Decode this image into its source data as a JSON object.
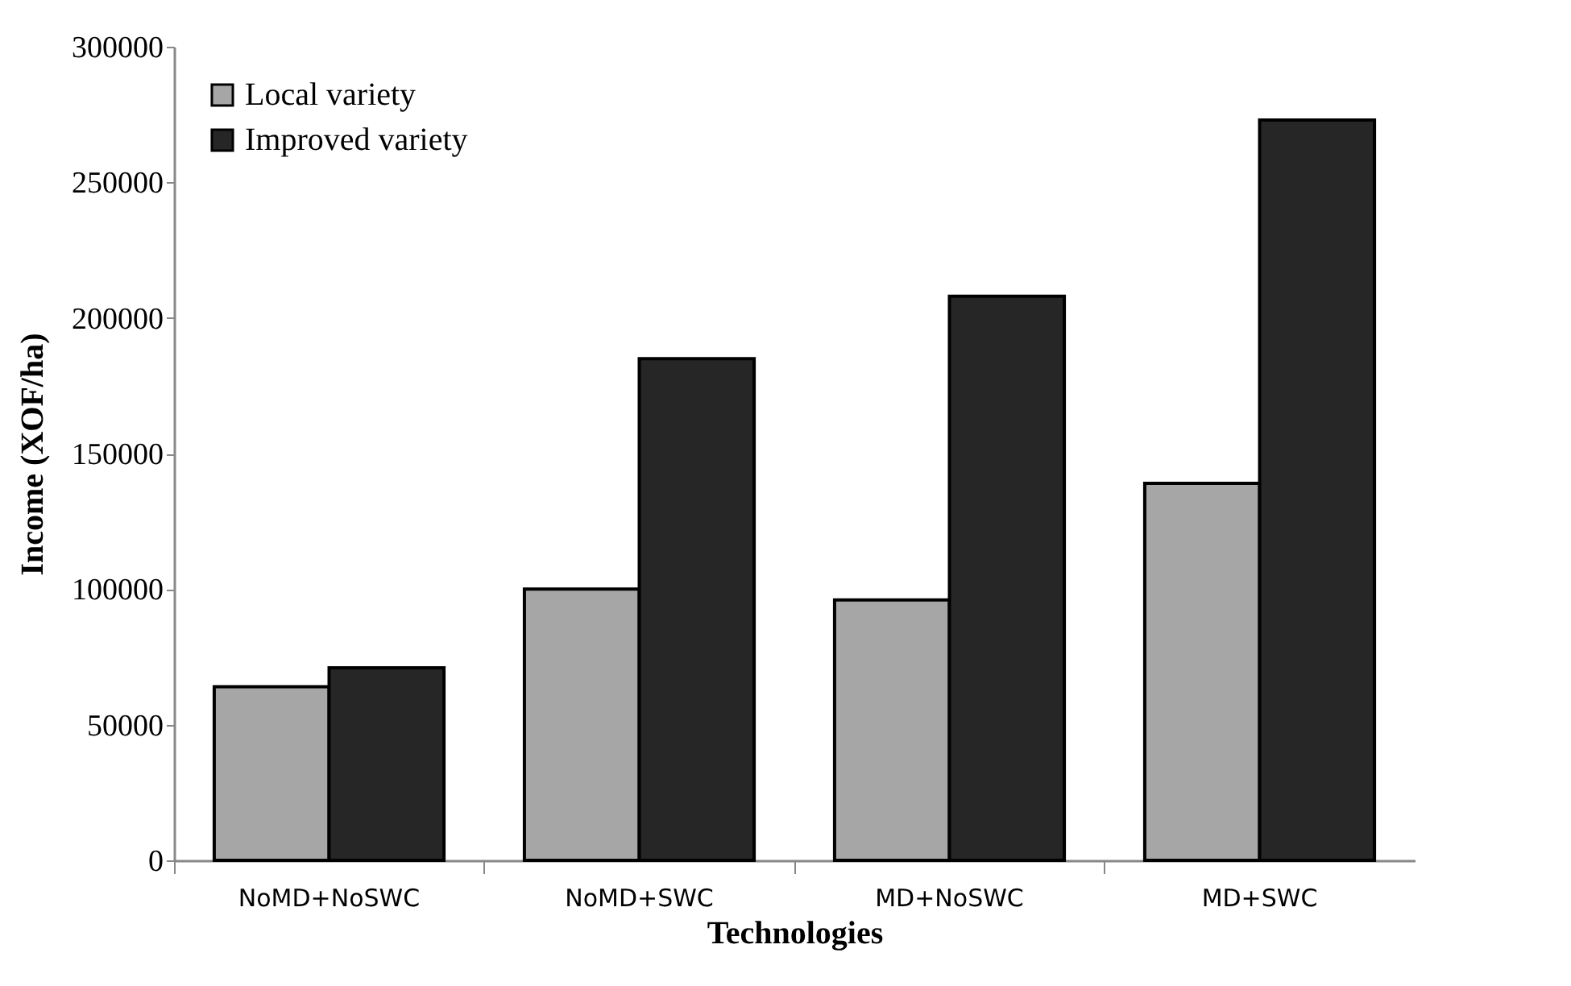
{
  "chart_data": {
    "type": "bar",
    "xlabel": "Technologies",
    "ylabel": "Income (XOF/ha)",
    "categories": [
      "NoMD+NoSWC",
      "NoMD+SWC",
      "MD+NoSWC",
      "MD+SWC"
    ],
    "series": [
      {
        "name": "Local variety",
        "color": "#a6a6a6",
        "values": [
          64000,
          100000,
          96000,
          139000
        ]
      },
      {
        "name": "Improved variety",
        "color": "#262626",
        "values": [
          71000,
          185000,
          208000,
          273000
        ]
      }
    ],
    "ylim": [
      0,
      300000
    ],
    "yticks": [
      0,
      50000,
      100000,
      150000,
      200000,
      250000,
      300000
    ],
    "grid": false,
    "legend": "top left"
  }
}
